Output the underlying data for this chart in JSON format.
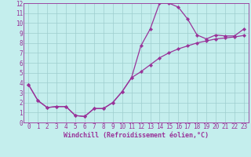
{
  "xlabel": "Windchill (Refroidissement éolien,°C)",
  "bg_color": "#c4eeed",
  "grid_color": "#9ecece",
  "line_color": "#993399",
  "xlim": [
    -0.5,
    23.5
  ],
  "ylim": [
    0,
    12
  ],
  "xticks": [
    0,
    1,
    2,
    3,
    4,
    5,
    6,
    7,
    8,
    9,
    10,
    11,
    12,
    13,
    14,
    15,
    16,
    17,
    18,
    19,
    20,
    21,
    22,
    23
  ],
  "yticks": [
    0,
    1,
    2,
    3,
    4,
    5,
    6,
    7,
    8,
    9,
    10,
    11,
    12
  ],
  "curve1_x": [
    0,
    1,
    2,
    3,
    4,
    5,
    6,
    7,
    8,
    9,
    10,
    11,
    12,
    13,
    14,
    15,
    16,
    17,
    18,
    19,
    20,
    21,
    22,
    23
  ],
  "curve1_y": [
    3.8,
    2.2,
    1.5,
    1.6,
    1.6,
    0.7,
    0.6,
    1.4,
    1.4,
    2.0,
    3.1,
    4.5,
    7.7,
    9.4,
    12.0,
    12.0,
    11.6,
    10.4,
    8.8,
    8.4,
    8.8,
    8.7,
    8.7,
    9.4
  ],
  "curve2_x": [
    0,
    1,
    2,
    3,
    4,
    5,
    6,
    7,
    8,
    9,
    10,
    11,
    12,
    13,
    14,
    15,
    16,
    17,
    18,
    19,
    20,
    21,
    22,
    23
  ],
  "curve2_y": [
    3.8,
    2.2,
    1.5,
    1.6,
    1.6,
    0.7,
    0.6,
    1.4,
    1.4,
    2.0,
    3.1,
    4.5,
    5.1,
    5.8,
    6.5,
    7.0,
    7.4,
    7.7,
    8.0,
    8.2,
    8.4,
    8.5,
    8.6,
    8.75
  ],
  "tick_fontsize": 5.5,
  "xlabel_fontsize": 6,
  "linewidth": 0.9,
  "markersize": 2.2
}
